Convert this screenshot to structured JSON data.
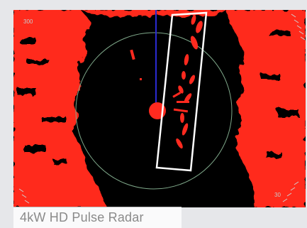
{
  "caption": "4kW HD Pulse Radar",
  "scale_left": "300",
  "scale_right": "30",
  "colors": {
    "echo": "#ff2a1f",
    "background": "#000000",
    "range_ring": "#7fa88a",
    "heading_line": "#2b2bd0",
    "highlight_box": "#ffffff"
  },
  "icons": [
    "radar-display",
    "heading-line",
    "range-ring",
    "target-highlight-box",
    "own-ship-marker"
  ]
}
